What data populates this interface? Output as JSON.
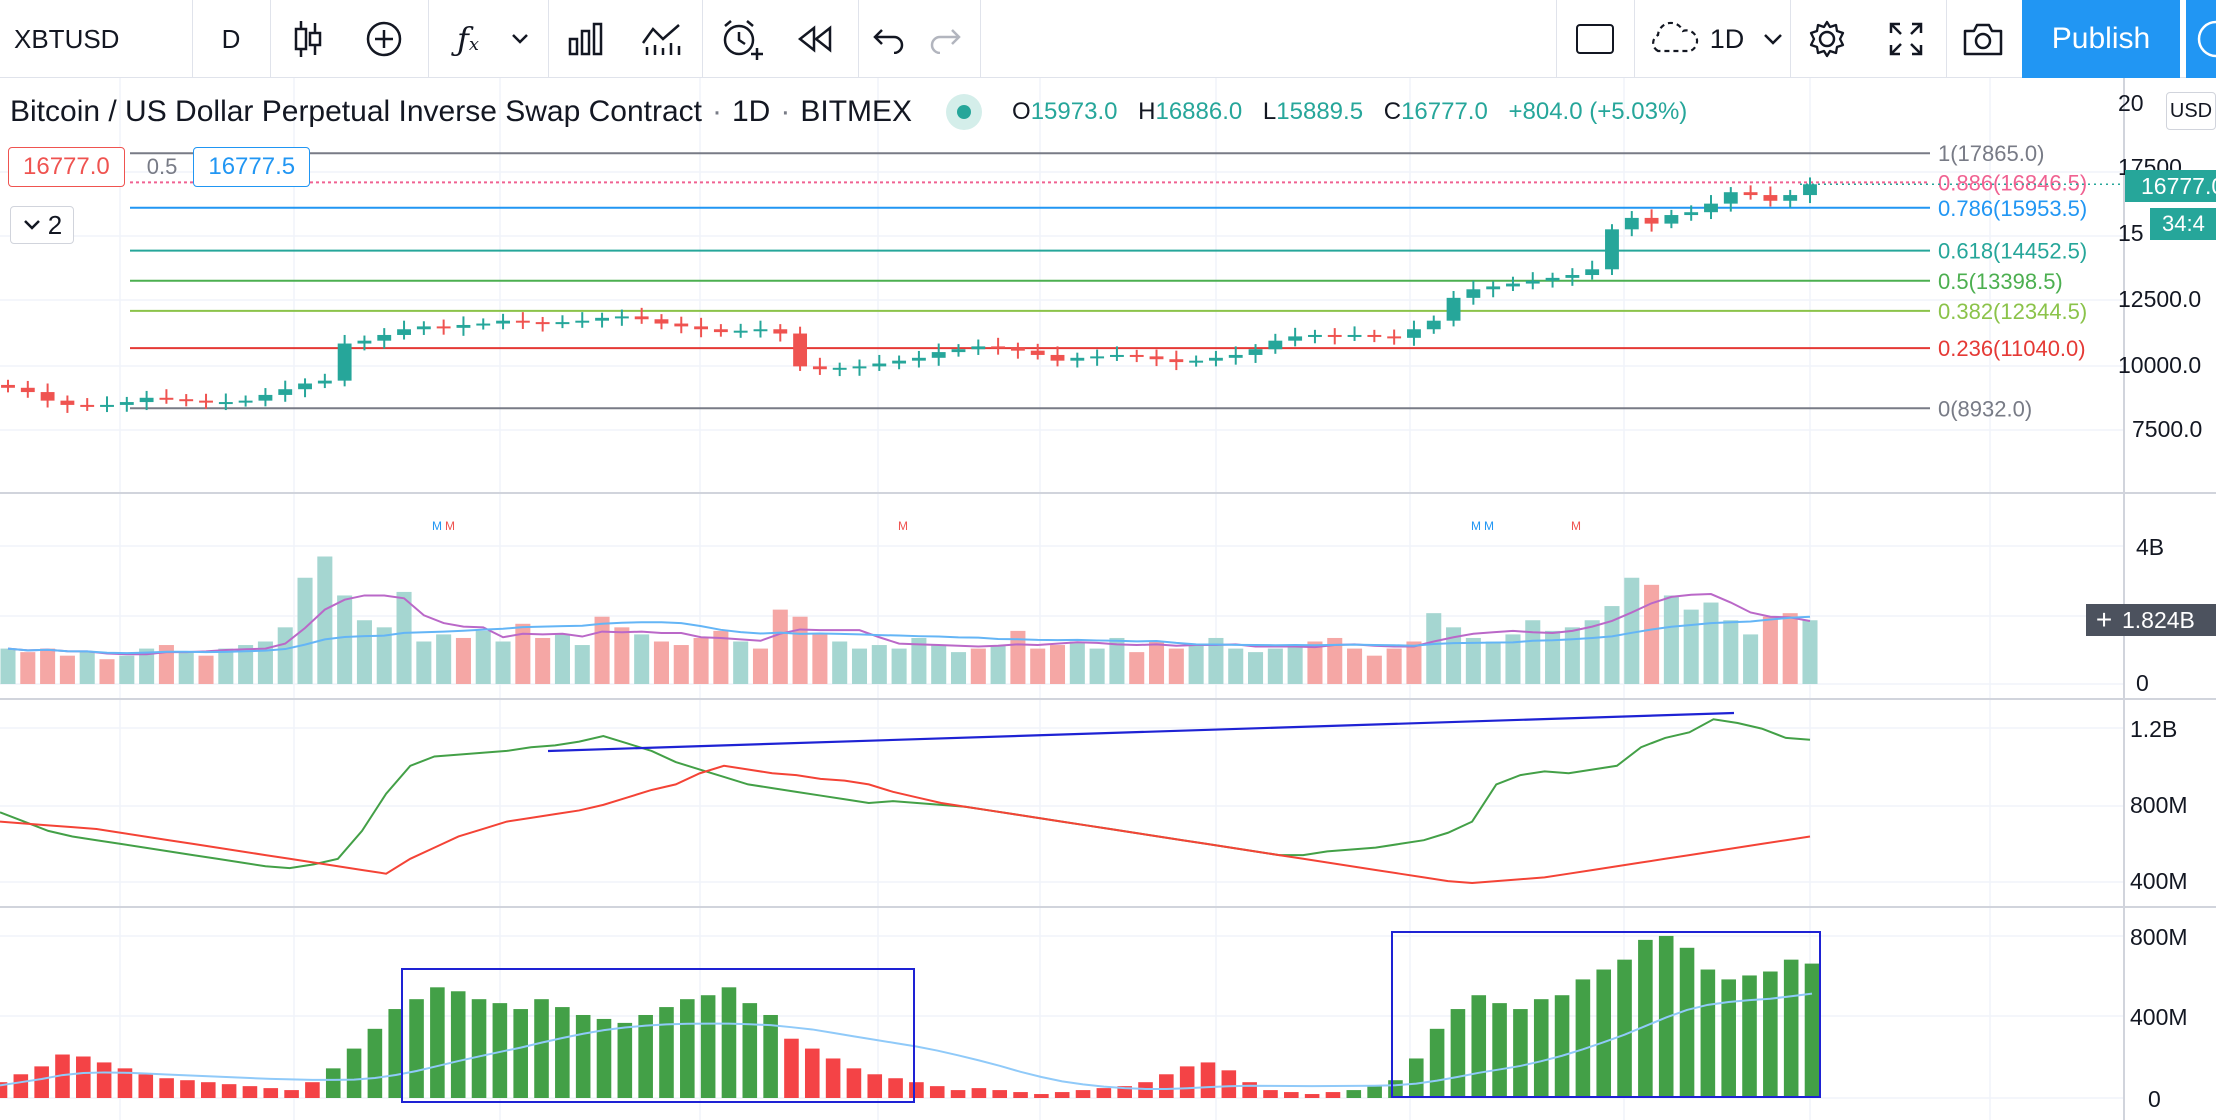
{
  "toolbar": {
    "symbol": "XBTUSD",
    "interval": "D",
    "layout_interval": "1D",
    "publish_label": "Publish"
  },
  "legend": {
    "title": "Bitcoin / US Dollar Perpetual Inverse Swap Contract",
    "sep1": "·",
    "timeframe": "1D",
    "sep2": "·",
    "exchange": "BITMEX",
    "open_key": "O",
    "open": "15973.0",
    "high_key": "H",
    "high": "16886.0",
    "low_key": "L",
    "low": "15889.5",
    "close_key": "C",
    "close": "16777.0",
    "change": "+804.0 (+5.03%)"
  },
  "trade": {
    "bid": "16777.0",
    "spread": "0.5",
    "ask": "16777.5"
  },
  "indicators_collapsed": {
    "count": "2"
  },
  "price_scale": {
    "currency": "USD",
    "ticks": [
      "20",
      "17500",
      "15",
      "12500.0",
      "10000.0",
      "7500.0"
    ],
    "last_price": "16777.0",
    "countdown": "34:4"
  },
  "fib_levels": [
    {
      "label": "1(17865.0)",
      "price": 17865.0,
      "color": "#787b86"
    },
    {
      "label": "0.886(16846.5)",
      "price": 16846.5,
      "color": "#f06292"
    },
    {
      "label": "0.786(15953.5)",
      "price": 15953.5,
      "color": "#2196f3"
    },
    {
      "label": "0.618(14452.5)",
      "price": 14452.5,
      "color": "#26a69a"
    },
    {
      "label": "0.5(13398.5)",
      "price": 13398.5,
      "color": "#4caf50"
    },
    {
      "label": "0.382(12344.5)",
      "price": 12344.5,
      "color": "#8bc34a"
    },
    {
      "label": "0.236(11040.0)",
      "price": 11040.0,
      "color": "#e53935"
    },
    {
      "label": "0(8932.0)",
      "price": 8932.0,
      "color": "#787b86"
    }
  ],
  "volume_pane": {
    "ticks": [
      "4B",
      "0"
    ],
    "current": "1.824B",
    "markers": [
      "M",
      "M",
      "M",
      "M",
      "M",
      "M"
    ]
  },
  "obv_pane": {
    "ticks": [
      "1.2B",
      "800M",
      "400M"
    ]
  },
  "hist_pane": {
    "ticks": [
      "800M",
      "400M",
      "0"
    ]
  },
  "chart_data": {
    "type": "candlestick",
    "y_range": [
      6000,
      20500
    ],
    "candles_close": [
      9650,
      9500,
      9200,
      9050,
      9000,
      9050,
      9150,
      9300,
      9250,
      9200,
      9150,
      9150,
      9200,
      9400,
      9600,
      9800,
      9900,
      11200,
      11300,
      11500,
      11700,
      11800,
      11750,
      11850,
      11900,
      12000,
      11950,
      11900,
      11950,
      12000,
      12100,
      12150,
      12050,
      11900,
      11800,
      11700,
      11600,
      11650,
      11700,
      11550,
      10400,
      10300,
      10350,
      10400,
      10500,
      10600,
      10700,
      10900,
      11000,
      11100,
      11050,
      10950,
      10800,
      10600,
      10700,
      10750,
      10800,
      10750,
      10650,
      10550,
      10600,
      10700,
      10800,
      11000,
      11300,
      11450,
      11500,
      11450,
      11500,
      11450,
      11400,
      11700,
      12000,
      12800,
      13100,
      13200,
      13300,
      13400,
      13500,
      13600,
      13800,
      15200,
      15600,
      15400,
      15700,
      15800,
      16100,
      16500,
      16400,
      16200,
      16400,
      16777
    ],
    "volume_up": [
      true,
      false,
      false,
      false,
      true,
      false,
      true,
      true,
      false,
      true,
      false,
      true,
      true,
      true,
      true,
      true,
      true,
      true,
      true,
      true,
      true,
      true,
      true,
      false,
      true,
      true,
      false,
      false,
      true,
      true,
      false,
      false,
      true,
      false,
      false,
      false,
      false,
      true,
      false,
      false,
      false,
      false,
      true,
      true,
      true,
      true,
      true,
      true,
      true,
      false,
      true,
      false,
      false,
      false,
      true,
      true,
      true,
      false,
      false,
      false,
      true,
      true,
      true,
      true,
      true,
      true,
      false,
      false,
      false,
      false,
      false,
      false,
      true,
      true,
      true,
      true,
      true,
      true,
      true,
      true,
      true,
      true,
      true,
      false,
      true,
      true,
      true,
      true,
      true,
      false,
      false,
      true
    ],
    "volume_values": [
      1.0,
      0.9,
      1.0,
      0.8,
      0.9,
      0.7,
      0.8,
      1.0,
      1.1,
      0.9,
      0.8,
      1.0,
      1.1,
      1.2,
      1.6,
      3.0,
      3.6,
      2.5,
      1.8,
      1.6,
      2.6,
      1.2,
      1.4,
      1.3,
      1.5,
      1.2,
      1.7,
      1.3,
      1.4,
      1.1,
      1.9,
      1.6,
      1.4,
      1.2,
      1.1,
      1.3,
      1.5,
      1.2,
      1.0,
      2.1,
      1.9,
      1.4,
      1.2,
      1.0,
      1.1,
      1.0,
      1.3,
      1.1,
      0.9,
      1.0,
      1.1,
      1.5,
      1.0,
      1.1,
      1.2,
      1.0,
      1.3,
      0.9,
      1.2,
      1.0,
      1.1,
      1.3,
      1.0,
      0.9,
      1.0,
      1.1,
      1.2,
      1.3,
      1.0,
      0.8,
      1.0,
      1.2,
      2.0,
      1.6,
      1.3,
      1.2,
      1.4,
      1.8,
      1.5,
      1.6,
      1.8,
      2.2,
      3.0,
      2.8,
      2.5,
      2.1,
      2.3,
      1.8,
      1.4,
      1.9,
      2.0,
      1.8
    ],
    "obv_green": [
      750,
      700,
      650,
      620,
      600,
      580,
      560,
      540,
      520,
      500,
      480,
      460,
      450,
      470,
      500,
      650,
      850,
      1000,
      1050,
      1060,
      1070,
      1080,
      1100,
      1110,
      1130,
      1160,
      1120,
      1080,
      1020,
      980,
      940,
      900,
      880,
      860,
      840,
      820,
      800,
      810,
      800,
      790,
      780,
      760,
      740,
      720,
      700,
      680,
      660,
      640,
      620,
      600,
      580,
      560,
      540,
      520,
      520,
      540,
      550,
      560,
      580,
      600,
      640,
      700,
      900,
      950,
      970,
      960,
      980,
      1000,
      1100,
      1150,
      1180,
      1250,
      1230,
      1200,
      1150,
      1140
    ],
    "obv_red": [
      700,
      690,
      680,
      670,
      660,
      640,
      620,
      600,
      580,
      560,
      540,
      520,
      500,
      480,
      460,
      440,
      420,
      500,
      560,
      620,
      660,
      700,
      720,
      740,
      760,
      790,
      830,
      870,
      900,
      960,
      1000,
      980,
      960,
      950,
      930,
      920,
      900,
      860,
      830,
      800,
      780,
      760,
      740,
      720,
      700,
      680,
      660,
      640,
      620,
      600,
      580,
      560,
      540,
      520,
      500,
      480,
      460,
      440,
      420,
      400,
      380,
      370,
      380,
      390,
      400,
      420,
      440,
      460,
      480,
      500,
      520,
      540,
      560,
      580,
      600,
      620
    ],
    "hist_values": [
      80,
      120,
      160,
      220,
      210,
      180,
      150,
      120,
      100,
      90,
      80,
      70,
      60,
      50,
      40,
      80,
      150,
      250,
      350,
      450,
      500,
      560,
      540,
      500,
      480,
      450,
      500,
      460,
      420,
      400,
      380,
      420,
      460,
      500,
      520,
      560,
      480,
      420,
      300,
      250,
      200,
      150,
      120,
      100,
      80,
      60,
      40,
      50,
      40,
      30,
      20,
      30,
      40,
      50,
      60,
      80,
      120,
      160,
      180,
      140,
      80,
      40,
      30,
      20,
      30,
      40,
      60,
      90,
      200,
      350,
      450,
      520,
      480,
      450,
      500,
      520,
      600,
      650,
      700,
      800,
      820,
      760,
      650,
      600,
      620,
      640,
      700,
      680
    ]
  }
}
